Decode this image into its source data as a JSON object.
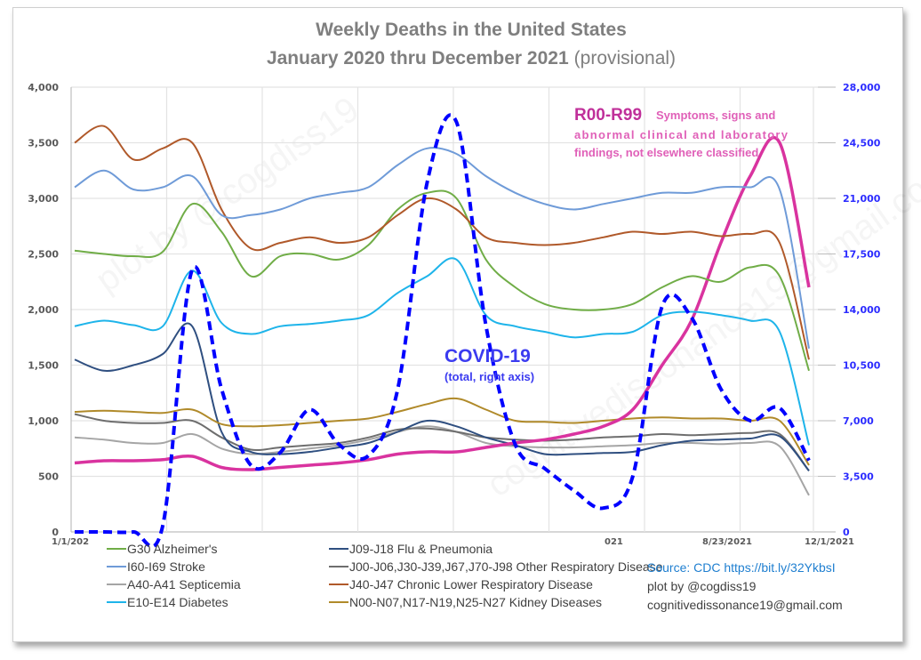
{
  "chart_data": {
    "type": "line",
    "title": "Weekly Deaths in the United States",
    "subtitle": "January 2020 thru December 2021",
    "subtitle_suffix": "(provisional)",
    "xlabel": "",
    "ylabel": "",
    "ylim": [
      0,
      4000
    ],
    "y2lim": [
      0,
      28000
    ],
    "grid": true,
    "yticks": [
      "0",
      "500",
      "1,000",
      "1,500",
      "2,000",
      "2,500",
      "3,000",
      "3,500",
      "4,000"
    ],
    "y2ticks": [
      "0",
      "3,500",
      "7,000",
      "10,500",
      "14,000",
      "17,500",
      "21,000",
      "24,500",
      "28,000"
    ],
    "xticks": [
      "1/1/202",
      "021",
      "8/23/2021",
      "12/1/2021"
    ],
    "x_range": [
      "2020-01-01",
      "2021-12-15"
    ],
    "x_step": "4 weeks (approx., 26 points from Jan 2020 to Dec 2021)",
    "series": [
      {
        "name": "G30 Alzheimer's",
        "axis": "left",
        "color": "#70ad47",
        "values": [
          2530,
          2500,
          2480,
          2520,
          2950,
          2700,
          2300,
          2480,
          2500,
          2450,
          2580,
          2900,
          3050,
          3000,
          2450,
          2200,
          2050,
          2000,
          2000,
          2050,
          2200,
          2300,
          2250,
          2380,
          2300,
          1450
        ]
      },
      {
        "name": "I60-I69  Stroke",
        "axis": "left",
        "color": "#6f9bd8",
        "values": [
          3100,
          3250,
          3080,
          3100,
          3200,
          2850,
          2850,
          2900,
          3000,
          3050,
          3100,
          3300,
          3450,
          3400,
          3200,
          3050,
          2950,
          2900,
          2950,
          3000,
          3050,
          3050,
          3100,
          3100,
          3080,
          1650
        ]
      },
      {
        "name": "A40-A41 Septicemia",
        "axis": "left",
        "color": "#a5a5a5",
        "values": [
          850,
          830,
          800,
          800,
          880,
          750,
          700,
          720,
          750,
          780,
          830,
          900,
          950,
          900,
          800,
          770,
          760,
          760,
          770,
          780,
          800,
          800,
          790,
          800,
          770,
          330
        ]
      },
      {
        "name": "E10-E14 Diabetes",
        "axis": "left",
        "color": "#1eb4ea",
        "values": [
          1850,
          1900,
          1860,
          1850,
          2350,
          1880,
          1780,
          1850,
          1870,
          1900,
          1950,
          2150,
          2300,
          2450,
          1950,
          1850,
          1800,
          1750,
          1780,
          1800,
          1950,
          1980,
          1950,
          1900,
          1800,
          780
        ]
      },
      {
        "name": "J09-J18 Flu & Pneumonia",
        "axis": "left",
        "color": "#2f4f80",
        "values": [
          1550,
          1450,
          1500,
          1600,
          1850,
          900,
          720,
          700,
          720,
          760,
          800,
          900,
          1000,
          950,
          850,
          780,
          700,
          700,
          710,
          720,
          780,
          820,
          830,
          840,
          860,
          550
        ]
      },
      {
        "name": "J00-J06,J30-J39,J67,J70-J98  Other Respiratory Disease",
        "axis": "left",
        "color": "#6e6e6e",
        "values": [
          1060,
          1000,
          980,
          980,
          1000,
          850,
          740,
          760,
          780,
          800,
          850,
          920,
          930,
          900,
          850,
          830,
          820,
          830,
          850,
          860,
          880,
          870,
          880,
          890,
          880,
          550
        ]
      },
      {
        "name": "J40-J47 Chronic Lower Respiratory Disease",
        "axis": "left",
        "color": "#b0592a",
        "values": [
          3500,
          3650,
          3350,
          3450,
          3500,
          2900,
          2550,
          2600,
          2650,
          2600,
          2650,
          2850,
          3000,
          2900,
          2650,
          2600,
          2580,
          2600,
          2650,
          2700,
          2680,
          2700,
          2660,
          2680,
          2600,
          1550
        ]
      },
      {
        "name": "N00-N07,N17-N19,N25-N27 Kidney Diseases",
        "axis": "left",
        "color": "#b08a2a",
        "values": [
          1080,
          1090,
          1080,
          1070,
          1100,
          970,
          950,
          960,
          980,
          1000,
          1020,
          1080,
          1150,
          1200,
          1100,
          1000,
          990,
          980,
          1000,
          1020,
          1030,
          1020,
          1020,
          1000,
          1000,
          600
        ]
      },
      {
        "name": "R00-R99 Symptoms, signs and abnormal clinical and laboratory findings, not elsewhere classified",
        "axis": "left",
        "color": "#d9339f",
        "values": [
          620,
          640,
          640,
          650,
          680,
          580,
          560,
          580,
          600,
          620,
          650,
          700,
          720,
          720,
          760,
          800,
          830,
          880,
          950,
          1100,
          1500,
          1900,
          2600,
          3200,
          3500,
          2200
        ]
      },
      {
        "name": "COVID-19 (total, right axis)",
        "axis": "right",
        "color": "#0000ff",
        "dashed": true,
        "values": [
          0,
          0,
          0,
          400,
          16500,
          9000,
          4200,
          5000,
          7700,
          5500,
          4800,
          9000,
          22000,
          25800,
          13000,
          5500,
          4000,
          2600,
          1500,
          3500,
          14200,
          13500,
          9000,
          7000,
          7800,
          4500
        ]
      }
    ],
    "annotations": [
      {
        "text": "COVID-19",
        "subtext": "(total, right axis)",
        "color": "#3b3bf0"
      },
      {
        "text": "R00-R99",
        "subtext": "Symptoms, signs and abnormal clinical and laboratory findings, not elsewhere classified",
        "color": "#c0309a"
      }
    ],
    "legend_placement": "bottom"
  },
  "legend": {
    "col1": [
      {
        "label": "G30 Alzheimer's",
        "color": "#70ad47"
      },
      {
        "label": "I60-I69  Stroke",
        "color": "#6f9bd8"
      },
      {
        "label": "A40-A41 Septicemia",
        "color": "#a5a5a5"
      },
      {
        "label": "E10-E14 Diabetes",
        "color": "#1eb4ea"
      }
    ],
    "col2": [
      {
        "label": "J09-J18 Flu & Pneumonia",
        "color": "#2f4f80"
      },
      {
        "label": "J00-J06,J30-J39,J67,J70-J98  Other Respiratory Disease",
        "color": "#6e6e6e"
      },
      {
        "label": "J40-J47 Chronic Lower Respiratory Disease",
        "color": "#b0592a"
      },
      {
        "label": "N00-N07,N17-N19,N25-N27 Kidney Diseases",
        "color": "#b08a2a"
      }
    ]
  },
  "credits": {
    "source": "Source:  CDC  https://bit.ly/32YkbsI",
    "plot_by": "plot by @cogdiss19",
    "email": "cognitivedissonance19@gmail.com"
  },
  "watermarks": [
    "plot by @cogdiss19",
    "cognitivedissonance19@gmail.com"
  ]
}
